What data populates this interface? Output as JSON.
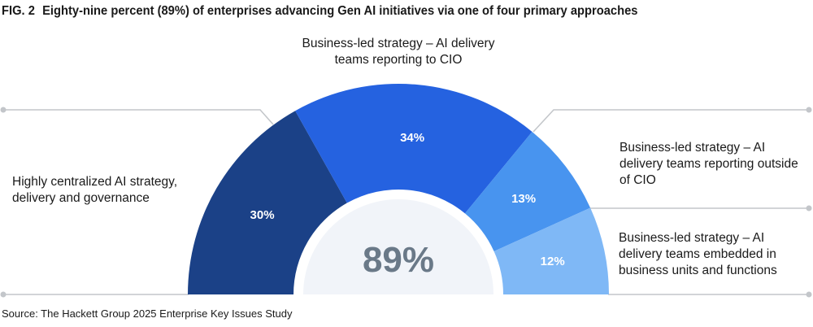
{
  "chart_data": {
    "type": "pie",
    "subtype": "semi-donut",
    "fig_label": "FIG. 2",
    "title": "Eighty-nine percent (89%) of enterprises advancing Gen AI initiatives via one of four primary approaches",
    "center_value": "89%",
    "total": 89,
    "slices": [
      {
        "label": "Highly centralized AI strategy, delivery and governance",
        "value": 30,
        "value_label": "30%",
        "color": "#1b4187"
      },
      {
        "label": "Business-led strategy – AI delivery teams reporting to CIO",
        "value": 34,
        "value_label": "34%",
        "color": "#2562e0"
      },
      {
        "label": "Business-led strategy – AI delivery teams reporting outside of CIO",
        "value": 13,
        "value_label": "13%",
        "color": "#4894ef"
      },
      {
        "label": "Business-led strategy – AI delivery teams embedded in business units and functions",
        "value": 12,
        "value_label": "12%",
        "color": "#7fb8f6"
      }
    ],
    "source": "Source: The Hackett Group 2025 Enterprise Key Issues Study"
  },
  "colors": {
    "center_fill": "#f1f4f9",
    "center_text": "#6a7988",
    "leader_line": "#c3c6ca"
  }
}
